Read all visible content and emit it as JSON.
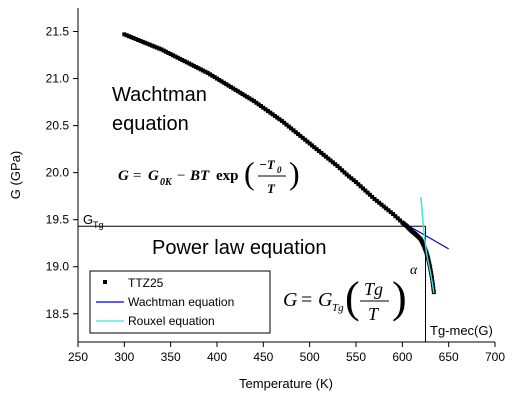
{
  "chart_data": {
    "type": "scatter",
    "xlabel": "Temperature (K)",
    "ylabel": "G (GPa)",
    "xlim": [
      250,
      700
    ],
    "ylim": [
      18.2,
      21.75
    ],
    "xticks": [
      "250",
      "300",
      "350",
      "400",
      "450",
      "500",
      "550",
      "600",
      "650",
      "700"
    ],
    "yticks": [
      "18.5",
      "19.0",
      "19.5",
      "20.0",
      "20.5",
      "21.0",
      "21.5"
    ],
    "grid": false,
    "legend_position": "bottom-left",
    "series": [
      {
        "name": "TTZ25",
        "style": "markers",
        "color": "#000000",
        "x": [
          300,
          310,
          320,
          330,
          340,
          350,
          360,
          370,
          380,
          390,
          400,
          410,
          420,
          430,
          440,
          450,
          460,
          470,
          480,
          490,
          500,
          510,
          520,
          530,
          540,
          550,
          560,
          570,
          580,
          590,
          600,
          605,
          610,
          615,
          620,
          623,
          626,
          628,
          630,
          632,
          634
        ],
        "y": [
          21.47,
          21.43,
          21.39,
          21.35,
          21.31,
          21.26,
          21.21,
          21.16,
          21.11,
          21.06,
          21.0,
          20.94,
          20.88,
          20.82,
          20.76,
          20.69,
          20.62,
          20.55,
          20.47,
          20.39,
          20.31,
          20.23,
          20.15,
          20.07,
          19.98,
          19.9,
          19.81,
          19.72,
          19.64,
          19.56,
          19.47,
          19.43,
          19.38,
          19.34,
          19.29,
          19.23,
          19.15,
          19.08,
          18.99,
          18.88,
          18.73
        ]
      },
      {
        "name": "Wachtman equation",
        "style": "line",
        "color": "#0000c8",
        "x": [
          300,
          350,
          400,
          450,
          500,
          550,
          600,
          620,
          650
        ],
        "y": [
          21.47,
          21.26,
          21.0,
          20.69,
          20.31,
          19.9,
          19.47,
          19.36,
          19.19
        ]
      },
      {
        "name": "Rouxel equation",
        "style": "line",
        "color": "#40e0e0",
        "x": [
          620,
          623,
          626,
          628,
          630,
          632,
          634
        ],
        "y": [
          19.74,
          19.4,
          19.15,
          19.05,
          18.96,
          18.85,
          18.72
        ]
      }
    ],
    "reference_lines": [
      {
        "orientation": "horizontal",
        "y": 19.43,
        "x_from": 250,
        "x_to": 625
      },
      {
        "orientation": "vertical",
        "x": 625,
        "y_from": 18.2,
        "y_to": 19.43
      }
    ],
    "annotations": {
      "wachtman_title_line1": "Wachtman",
      "wachtman_title_line2": "equation",
      "wachtman_formula": "G = G0K − BT exp(−T0/T)",
      "power_law_title": "Power law equation",
      "power_law_formula": "G = GTg (Tg/T)^α",
      "gtg_label": "G",
      "gtg_label_sub": "Tg",
      "tg_mec_label": "Tg-mec(G)"
    }
  }
}
